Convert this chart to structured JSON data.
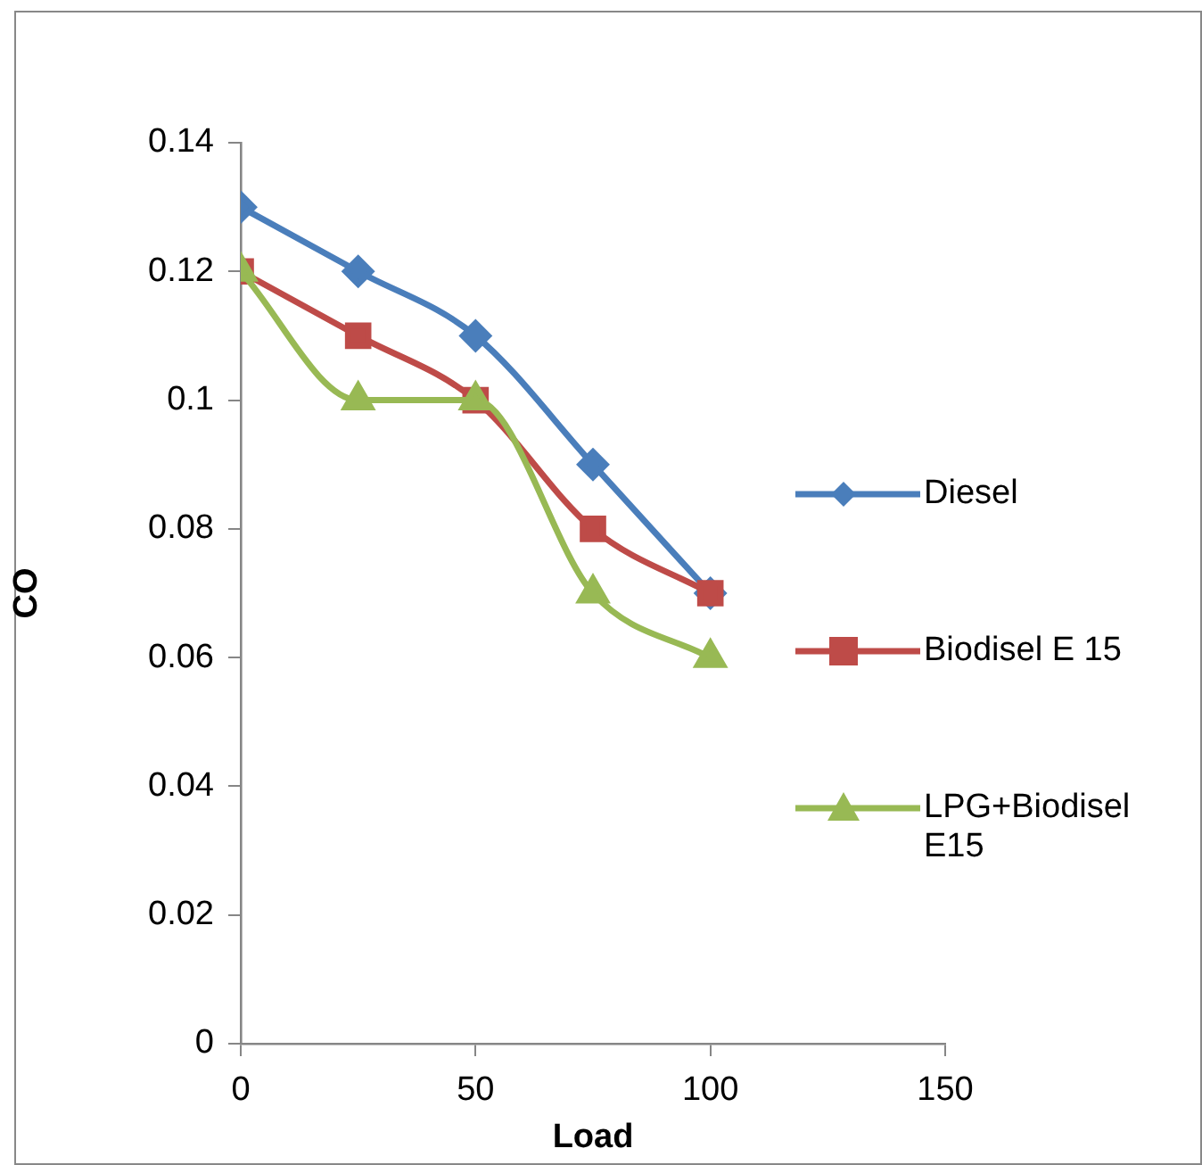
{
  "chart_data": {
    "type": "line",
    "xlabel": "Load",
    "ylabel": "CO",
    "x": [
      0,
      25,
      50,
      75,
      100
    ],
    "series": [
      {
        "name": "Diesel",
        "color": "#4a7ebb",
        "marker": "diamond",
        "values": [
          0.13,
          0.12,
          0.11,
          0.09,
          0.07
        ]
      },
      {
        "name": "Biodisel E 15",
        "color": "#be4b48",
        "marker": "square",
        "values": [
          0.12,
          0.11,
          0.1,
          0.08,
          0.07
        ]
      },
      {
        "name": "LPG+Biodisel E15",
        "color": "#98b954",
        "marker": "triangle",
        "values": [
          0.12,
          0.1,
          0.1,
          0.07,
          0.06
        ]
      }
    ],
    "xlim": [
      0,
      150
    ],
    "xticks": [
      0,
      50,
      100,
      150
    ],
    "ylim": [
      0,
      0.14
    ],
    "yticks": [
      0,
      0.02,
      0.04,
      0.06,
      0.08,
      0.1,
      0.12,
      0.14
    ],
    "grid": false,
    "legend": "right",
    "line_style": "solid"
  }
}
